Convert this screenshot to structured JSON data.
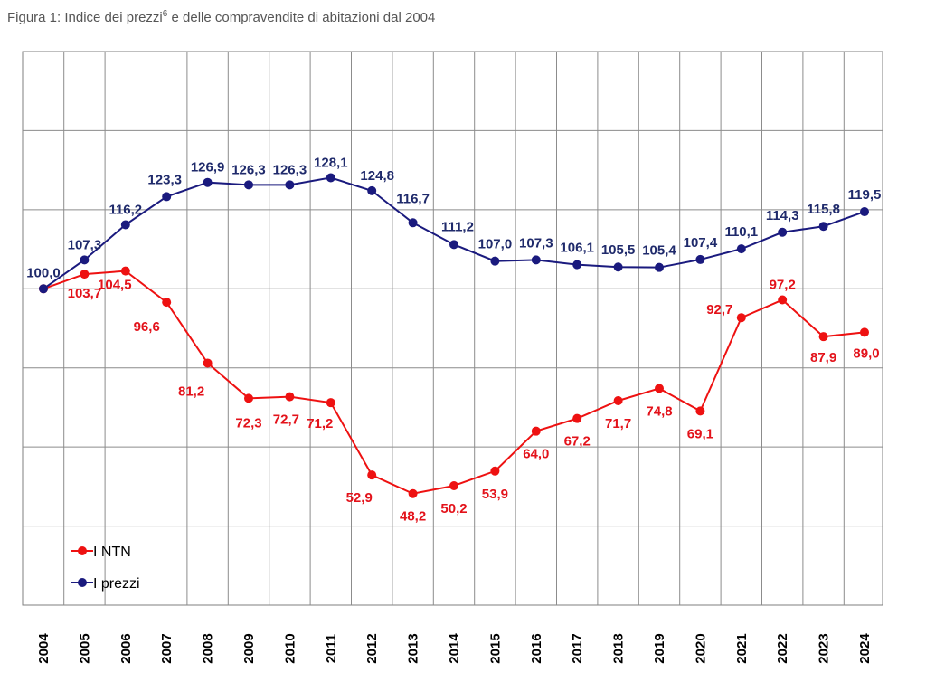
{
  "title": {
    "prefix": "Figura 1: Indice dei prezzi",
    "sup": "6",
    "suffix": " e delle compravendite di abitazioni dal 2004"
  },
  "chart_data": {
    "type": "line",
    "title": "Figura 1: Indice dei prezzi6 e delle compravendite di abitazioni dal 2004",
    "xlabel": "",
    "ylabel": "",
    "categories": [
      "2004",
      "2005",
      "2006",
      "2007",
      "2008",
      "2009",
      "2010",
      "2011",
      "2012",
      "2013",
      "2014",
      "2015",
      "2016",
      "2017",
      "2018",
      "2019",
      "2020",
      "2021",
      "2022",
      "2023",
      "2024"
    ],
    "series": [
      {
        "name": "I prezzi",
        "color": "#1a1a7e",
        "values": [
          100.0,
          107.3,
          116.2,
          123.3,
          126.9,
          126.3,
          126.3,
          128.1,
          124.8,
          116.7,
          111.2,
          107.0,
          107.3,
          106.1,
          105.5,
          105.4,
          107.4,
          110.1,
          114.3,
          115.8,
          119.5
        ],
        "labels": [
          "100,0",
          "107,3",
          "116,2",
          "123,3",
          "126,9",
          "126,3",
          "126,3",
          "128,1",
          "124,8",
          "116,7",
          "111,2",
          "107,0",
          "107,3",
          "106,1",
          "105,5",
          "105,4",
          "107,4",
          "110,1",
          "114,3",
          "115,8",
          "119,5"
        ]
      },
      {
        "name": "I NTN",
        "color": "#ee1111",
        "values": [
          100.0,
          103.7,
          104.5,
          96.6,
          81.2,
          72.3,
          72.7,
          71.2,
          52.9,
          48.2,
          50.2,
          53.9,
          64.0,
          67.2,
          71.7,
          74.8,
          69.1,
          92.7,
          97.2,
          87.9,
          89.0
        ],
        "labels": [
          "",
          "103,7",
          "104,5",
          "96,6",
          "81,2",
          "72,3",
          "72,7",
          "71,2",
          "52,9",
          "48,2",
          "50,2",
          "53,9",
          "64,0",
          "67,2",
          "71,7",
          "74,8",
          "69,1",
          "92,7",
          "97,2",
          "87,9",
          "89,0"
        ]
      }
    ],
    "ylim": [
      20,
      160
    ],
    "grid": true,
    "legend": {
      "position": "bottom-left",
      "entries": [
        "I NTN",
        "I prezzi"
      ]
    }
  }
}
